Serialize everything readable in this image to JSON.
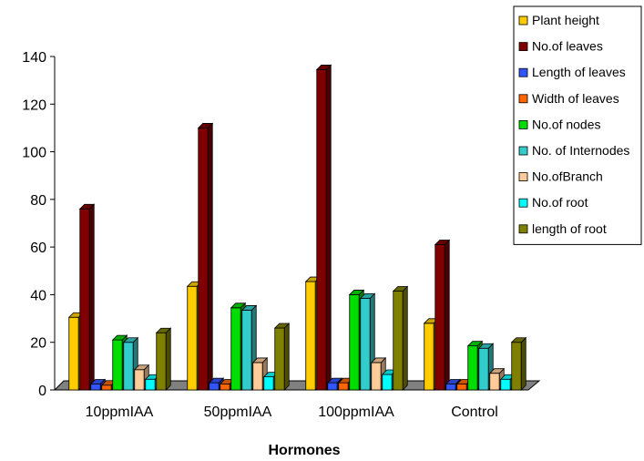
{
  "chart_data": {
    "type": "bar",
    "variant": "3d-clustered",
    "xlabel": "Hormones",
    "ylabel": "",
    "ylim": [
      0,
      140
    ],
    "yticks": [
      0,
      20,
      40,
      60,
      80,
      100,
      120,
      140
    ],
    "grid": false,
    "legend_position": "top-right",
    "categories": [
      "10ppmIAA",
      "50ppmIAA",
      "100ppmIAA",
      "Control"
    ],
    "series": [
      {
        "name": "Plant height",
        "color": "#FFCC00",
        "values": [
          30.5,
          43.5,
          45.5,
          28
        ]
      },
      {
        "name": "No.of leaves",
        "color": "#800000",
        "values": [
          76,
          110,
          134.5,
          61
        ]
      },
      {
        "name": "Length of leaves",
        "color": "#3355FF",
        "values": [
          2.5,
          3,
          3,
          2.5
        ]
      },
      {
        "name": "Width of leaves",
        "color": "#FF6600",
        "values": [
          2,
          2.5,
          3,
          2.5
        ]
      },
      {
        "name": "No.of nodes",
        "color": "#00DD00",
        "values": [
          21,
          34.5,
          40,
          18.5
        ]
      },
      {
        "name": "No. of Internodes",
        "color": "#33CCCC",
        "values": [
          20,
          33.5,
          38.5,
          17.5
        ]
      },
      {
        "name": "No.ofBranch",
        "color": "#FFCC99",
        "values": [
          8.5,
          11.5,
          11.5,
          7
        ]
      },
      {
        "name": "No.of root",
        "color": "#00FFFF",
        "values": [
          4.5,
          5.5,
          6.5,
          4.5
        ]
      },
      {
        "name": "length of root",
        "color": "#808000",
        "values": [
          24,
          26,
          41.5,
          20
        ]
      }
    ]
  }
}
